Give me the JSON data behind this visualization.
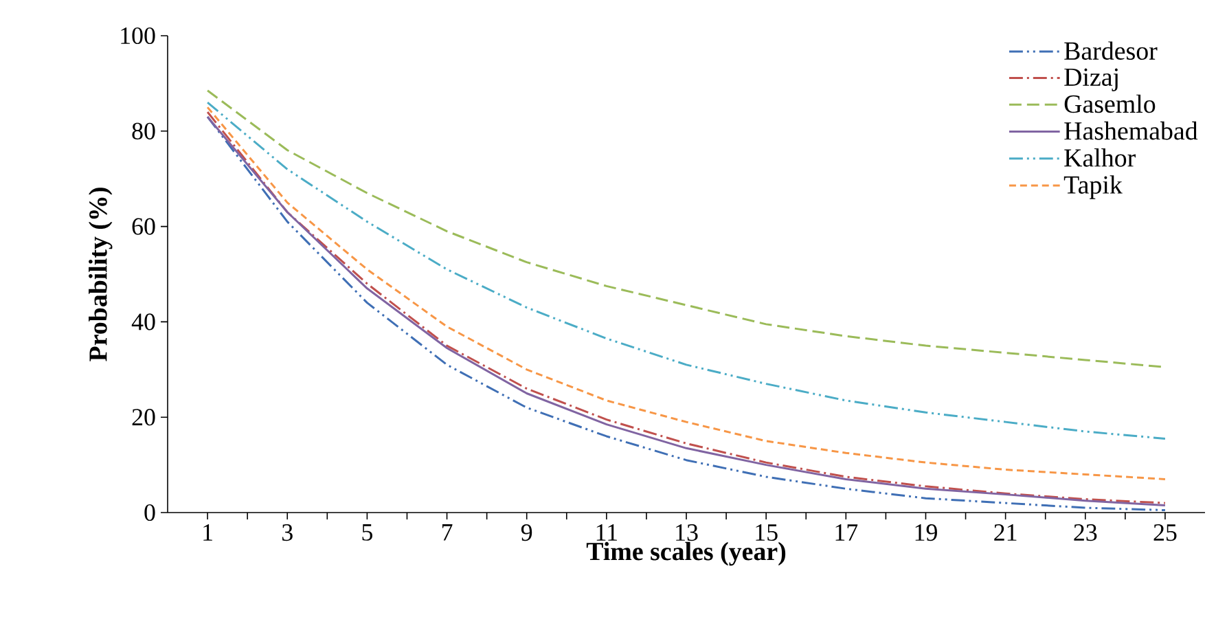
{
  "chart_data": {
    "type": "line",
    "xlabel": "Time scales (year)",
    "ylabel": "Probability (%)",
    "x": [
      1,
      3,
      5,
      7,
      9,
      11,
      13,
      15,
      17,
      19,
      21,
      23,
      25
    ],
    "xlim": [
      0,
      26
    ],
    "xticks": [
      1,
      {
        "value": 2,
        "label": null
      },
      3,
      {
        "value": 4,
        "label": null
      },
      5,
      {
        "value": 6,
        "label": null
      },
      7,
      {
        "value": 8,
        "label": null
      },
      9,
      {
        "value": 10,
        "label": null
      },
      11,
      {
        "value": 12,
        "label": null
      },
      13,
      {
        "value": 14,
        "label": null
      },
      15,
      {
        "value": 16,
        "label": null
      },
      17,
      {
        "value": 18,
        "label": null
      },
      19,
      {
        "value": 20,
        "label": null
      },
      21,
      {
        "value": 22,
        "label": null
      },
      23,
      {
        "value": 24,
        "label": null
      },
      25
    ],
    "ylim": [
      0,
      100
    ],
    "yticks": [
      0,
      20,
      40,
      60,
      80,
      100
    ],
    "legend": "top right",
    "grid": false,
    "marker": "none",
    "series": [
      {
        "name": "Bardesor",
        "color": "#3f6fb5",
        "line_style": "dashdotdotted",
        "values": [
          83,
          61,
          44,
          31,
          22,
          16,
          11,
          7.5,
          5,
          3,
          2,
          1,
          0.5
        ]
      },
      {
        "name": "Dizaj",
        "color": "#c0504d",
        "line_style": "dashdotted",
        "values": [
          84,
          63,
          48,
          35,
          26,
          19.5,
          14.5,
          10.5,
          7.5,
          5.5,
          4,
          2.8,
          2
        ]
      },
      {
        "name": "Gasemlo",
        "color": "#9bbb59",
        "line_style": "dashed",
        "values": [
          88.5,
          76,
          67,
          59,
          52.5,
          47.5,
          43.5,
          39.5,
          37,
          35,
          33.5,
          32,
          30.5
        ]
      },
      {
        "name": "Hashemabad",
        "color": "#8064a2",
        "line_style": "solid",
        "values": [
          83,
          63,
          47,
          34.5,
          25,
          18.5,
          13.5,
          10,
          7,
          5,
          3.8,
          2.5,
          1.5
        ]
      },
      {
        "name": "Kalhor",
        "color": "#4bacc6",
        "line_style": "dashdotdotted",
        "values": [
          86,
          72,
          61,
          51,
          43,
          36.5,
          31,
          27,
          23.5,
          21,
          19,
          17,
          15.5
        ]
      },
      {
        "name": "Tapik",
        "color": "#f79646",
        "line_style": "shortdashed",
        "values": [
          85,
          65,
          51,
          39,
          30,
          23.5,
          19,
          15,
          12.5,
          10.5,
          9,
          8,
          7
        ]
      }
    ]
  }
}
